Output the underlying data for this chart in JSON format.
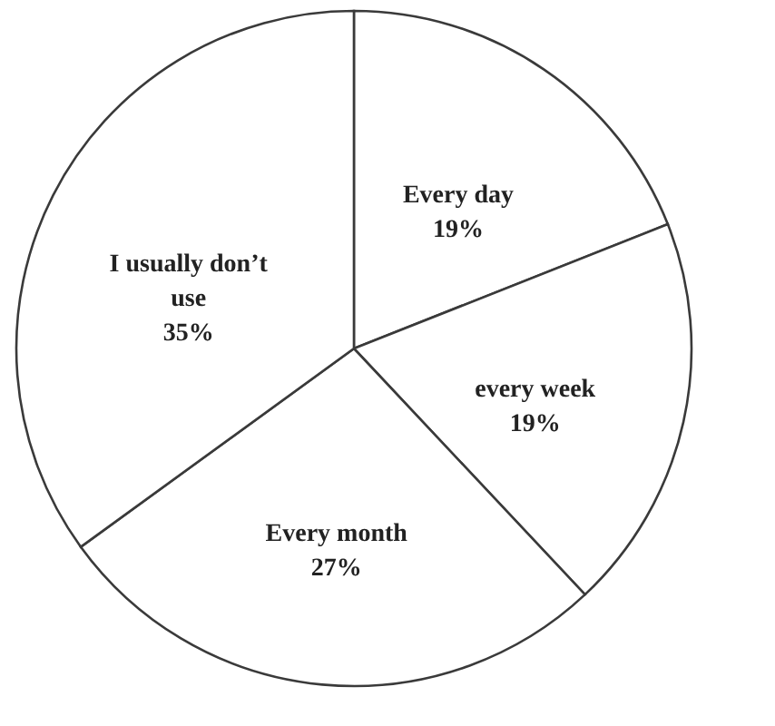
{
  "chart_data": {
    "type": "pie",
    "categories": [
      "Every day",
      "every week",
      "Every month",
      "I usually don’t use"
    ],
    "values": [
      19,
      19,
      27,
      35
    ],
    "colors": [
      "#ffffff",
      "#ffffff",
      "#ffffff",
      "#ffffff"
    ],
    "value_labels": [
      "19%",
      "19%",
      "27%",
      "35%"
    ]
  }
}
